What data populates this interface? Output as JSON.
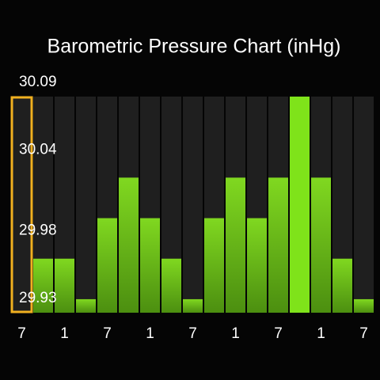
{
  "chart_data": {
    "type": "bar",
    "title": "Barometric Pressure Chart (inHg)",
    "categories": [
      "7",
      null,
      "1",
      null,
      "7",
      null,
      "1",
      null,
      "7",
      null,
      "1",
      null,
      "7",
      null,
      "1",
      null,
      "7"
    ],
    "values": [
      null,
      29.97,
      29.97,
      29.94,
      30.0,
      30.03,
      30.0,
      29.97,
      29.94,
      30.0,
      30.03,
      30.0,
      30.03,
      30.09,
      30.03,
      29.97,
      29.94
    ],
    "color": "#6cc01a",
    "ylim": [
      29.93,
      30.09
    ],
    "yticks": [
      29.93,
      29.98,
      30.04,
      30.09
    ],
    "grid": false,
    "selected_index": 0
  }
}
